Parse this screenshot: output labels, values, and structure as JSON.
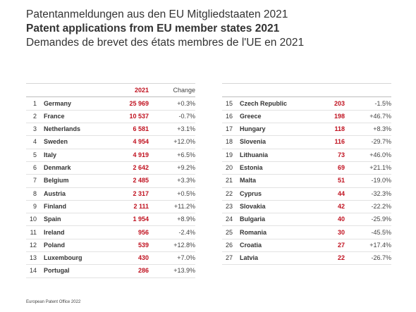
{
  "header": {
    "title_de": "Patentanmeldungen aus den EU Mitgliedstaaten 2021",
    "title_en": "Patent applications from EU member states 2021",
    "title_fr": "Demandes de brevet des états membres de l'UE en 2021"
  },
  "tables": [
    {
      "columns": [
        "2021",
        "Change"
      ],
      "rows": [
        [
          "1",
          "Germany",
          "25 969",
          "+0.3%"
        ],
        [
          "2",
          "France",
          "10 537",
          "-0.7%"
        ],
        [
          "3",
          "Netherlands",
          "6 581",
          "+3.1%"
        ],
        [
          "4",
          "Sweden",
          "4 954",
          "+12.0%"
        ],
        [
          "5",
          "Italy",
          "4 919",
          "+6.5%"
        ],
        [
          "6",
          "Denmark",
          "2 642",
          "+9.2%"
        ],
        [
          "7",
          "Belgium",
          "2 485",
          "+3.3%"
        ],
        [
          "8",
          "Austria",
          "2 317",
          "+0.5%"
        ],
        [
          "9",
          "Finland",
          "2 111",
          "+11.2%"
        ],
        [
          "10",
          "Spain",
          "1 954",
          "+8.9%"
        ],
        [
          "11",
          "Ireland",
          "956",
          "-2.4%"
        ],
        [
          "12",
          "Poland",
          "539",
          "+12.8%"
        ],
        [
          "13",
          "Luxembourg",
          "430",
          "+7.0%"
        ],
        [
          "14",
          "Portugal",
          "286",
          "+13.9%"
        ]
      ]
    },
    {
      "rows": [
        [
          "15",
          "Czech Republic",
          "203",
          "-1.5%"
        ],
        [
          "16",
          "Greece",
          "198",
          "+46.7%"
        ],
        [
          "17",
          "Hungary",
          "118",
          "+8.3%"
        ],
        [
          "18",
          "Slovenia",
          "116",
          "-29.7%"
        ],
        [
          "19",
          "Lithuania",
          "73",
          "+46.0%"
        ],
        [
          "20",
          "Estonia",
          "69",
          "+21.1%"
        ],
        [
          "21",
          "Malta",
          "51",
          "-19.0%"
        ],
        [
          "22",
          "Cyprus",
          "44",
          "-32.3%"
        ],
        [
          "23",
          "Slovakia",
          "42",
          "-22.2%"
        ],
        [
          "24",
          "Bulgaria",
          "40",
          "-25.9%"
        ],
        [
          "25",
          "Romania",
          "30",
          "-45.5%"
        ],
        [
          "26",
          "Croatia",
          "27",
          "+17.4%"
        ],
        [
          "27",
          "Latvia",
          "22",
          "-26.7%"
        ]
      ]
    }
  ],
  "footer": "European Patent Office 2022"
}
